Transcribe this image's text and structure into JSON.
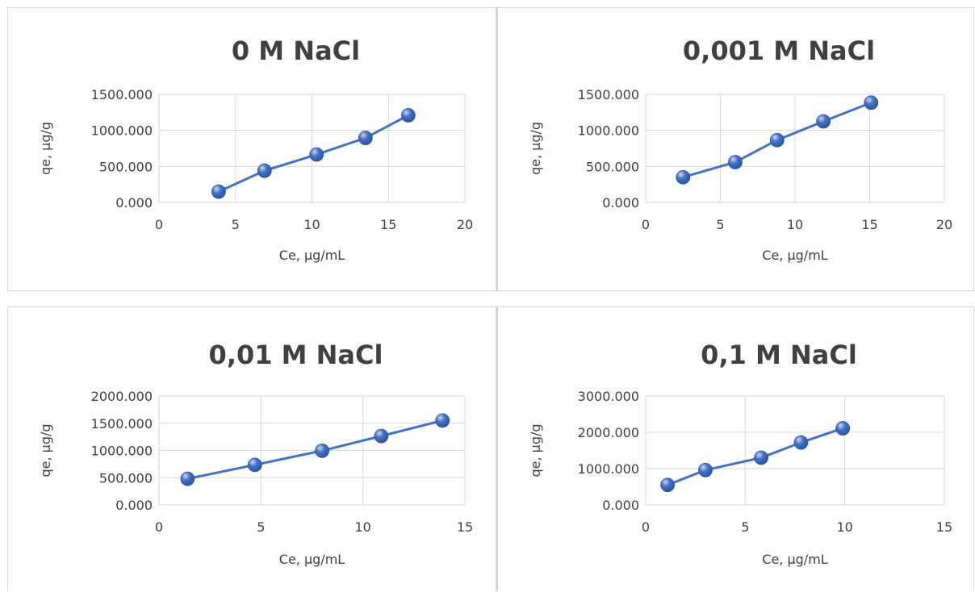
{
  "colors": {
    "series": "#4472c4",
    "marker_dark": "#2f55a4",
    "grid": "#d9d9d9",
    "text": "#404040"
  },
  "chart_data": [
    {
      "type": "scatter",
      "title": "0 M NaCl",
      "xlabel": "Ce, µg/mL",
      "ylabel": "qe, µg/g",
      "xlim": [
        0,
        20
      ],
      "ylim": [
        0,
        1500
      ],
      "x_ticks": [
        "0",
        "5",
        "10",
        "15",
        "20"
      ],
      "y_ticks": [
        "0.000",
        "500.000",
        "1000.000",
        "1500.000"
      ],
      "grid": true,
      "legend": "none",
      "series": [
        {
          "x": [
            3.9,
            6.9,
            10.3,
            13.5,
            16.3
          ],
          "y": [
            150,
            440,
            665,
            895,
            1210
          ]
        }
      ]
    },
    {
      "type": "scatter",
      "title": "0,001 M NaCl",
      "xlabel": "Ce, µg/mL",
      "ylabel": "qe, µg/g",
      "xlim": [
        0,
        20
      ],
      "ylim": [
        0,
        1500
      ],
      "x_ticks": [
        "0",
        "5",
        "10",
        "15",
        "20"
      ],
      "y_ticks": [
        "0.000",
        "500.000",
        "1000.000",
        "1500.000"
      ],
      "grid": true,
      "legend": "none",
      "series": [
        {
          "x": [
            2.5,
            6.0,
            8.8,
            11.9,
            15.1
          ],
          "y": [
            350,
            560,
            865,
            1125,
            1385
          ]
        }
      ]
    },
    {
      "type": "scatter",
      "title": "0,01 M NaCl",
      "xlabel": "Ce, µg/mL",
      "ylabel": "qe, µg/g",
      "xlim": [
        0,
        15
      ],
      "ylim": [
        0,
        2000
      ],
      "x_ticks": [
        "0",
        "5",
        "10",
        "15"
      ],
      "y_ticks": [
        "0.000",
        "500.000",
        "1000.000",
        "1500.000",
        "2000.000"
      ],
      "grid": true,
      "legend": "none",
      "series": [
        {
          "x": [
            1.4,
            4.7,
            8.0,
            10.9,
            13.9
          ],
          "y": [
            480,
            735,
            995,
            1265,
            1550
          ]
        }
      ]
    },
    {
      "type": "scatter",
      "title": "0,1 M NaCl",
      "xlabel": "Ce, µg/mL",
      "ylabel": "qe, µg/g",
      "xlim": [
        0,
        15
      ],
      "ylim": [
        0,
        3000
      ],
      "x_ticks": [
        "0",
        "5",
        "10",
        "15"
      ],
      "y_ticks": [
        "0.000",
        "1000.000",
        "2000.000",
        "3000.000"
      ],
      "grid": true,
      "legend": "none",
      "series": [
        {
          "x": [
            1.1,
            3.0,
            5.8,
            7.8,
            9.9
          ],
          "y": [
            550,
            960,
            1300,
            1720,
            2110
          ]
        }
      ]
    }
  ]
}
